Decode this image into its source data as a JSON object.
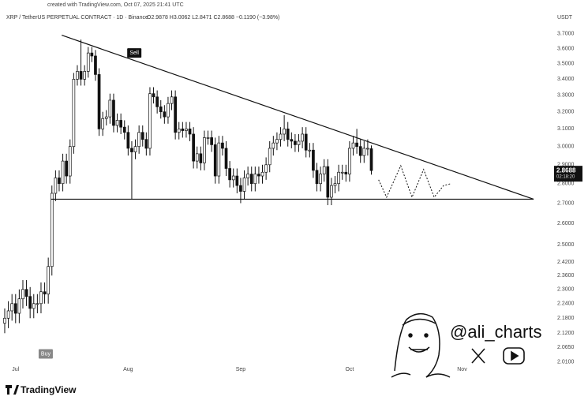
{
  "header": "created with TradingView.com, Oct 07, 2025 21:41 UTC",
  "chart_data": {
    "type": "candlestick",
    "title": "XRP / TetherUS PERPETUAL CONTRACT · 1D · Binance",
    "ohlc_text": "O2.9878 H3.0062 L2.8471 C2.8688 −0.1190 (−3.98%)",
    "currency": "USDT",
    "countdown": "02:18:20",
    "open": [
      2.16,
      2.18,
      2.21,
      2.24,
      2.2,
      2.26,
      2.3,
      2.27,
      2.22,
      2.24,
      2.24,
      2.29,
      2.28,
      2.4,
      2.75,
      2.83,
      2.8,
      2.92,
      2.84,
      3.0,
      3.4,
      3.45,
      3.4,
      3.45,
      3.57,
      3.55,
      3.43,
      3.1,
      3.16,
      3.17,
      3.27,
      3.12,
      3.15,
      3.11,
      3.08,
      2.99,
      2.97,
      3.0,
      3.08,
      3.04,
      2.99,
      3.31,
      3.29,
      3.23,
      3.2,
      3.17,
      3.25,
      3.29,
      3.08,
      3.1,
      3.09,
      3.1,
      3.07,
      2.92,
      2.96,
      2.91,
      3.05,
      3.05,
      3.01,
      2.84,
      3.02,
      2.99,
      2.88,
      2.82,
      2.84,
      2.79,
      2.76,
      2.83,
      2.85,
      2.8,
      2.85,
      2.84,
      2.86,
      2.9,
      2.99,
      3.02,
      3.04,
      3.07,
      3.1,
      3.04,
      3.03,
      3.01,
      3.03,
      3.07,
      2.98,
      2.98,
      2.87,
      2.8,
      2.85,
      2.89,
      2.73,
      2.79,
      2.8,
      2.86,
      2.86,
      2.85,
      2.99,
      3.02,
      3.0,
      2.95,
      2.99,
      2.9878
    ],
    "high": [
      2.22,
      2.25,
      2.28,
      2.28,
      2.3,
      2.34,
      2.34,
      2.31,
      2.28,
      2.28,
      2.33,
      2.33,
      2.44,
      2.79,
      2.87,
      2.87,
      2.96,
      2.96,
      3.04,
      3.44,
      3.49,
      3.66,
      3.49,
      3.61,
      3.61,
      3.59,
      3.47,
      3.2,
      3.21,
      3.31,
      3.31,
      3.19,
      3.19,
      3.15,
      3.12,
      3.03,
      3.04,
      3.12,
      3.12,
      3.08,
      3.35,
      3.35,
      3.33,
      3.27,
      3.24,
      3.29,
      3.33,
      3.33,
      3.14,
      3.14,
      3.14,
      3.14,
      3.11,
      3.0,
      3.0,
      3.09,
      3.09,
      3.09,
      3.05,
      3.06,
      3.06,
      3.03,
      2.92,
      2.88,
      2.88,
      2.83,
      2.87,
      2.89,
      2.89,
      2.89,
      2.89,
      2.9,
      2.94,
      3.03,
      3.06,
      3.08,
      3.11,
      3.18,
      3.14,
      3.08,
      3.07,
      3.07,
      3.11,
      3.11,
      3.02,
      3.02,
      2.91,
      2.89,
      2.93,
      2.93,
      2.83,
      2.84,
      2.9,
      2.9,
      2.9,
      3.03,
      3.06,
      3.1,
      3.04,
      3.03,
      3.04,
      3.0062
    ],
    "low": [
      2.12,
      2.14,
      2.17,
      2.16,
      2.16,
      2.22,
      2.23,
      2.18,
      2.18,
      2.2,
      2.2,
      2.24,
      2.24,
      2.36,
      2.71,
      2.76,
      2.76,
      2.8,
      2.8,
      2.96,
      3.36,
      3.36,
      3.36,
      3.41,
      3.51,
      3.39,
      3.06,
      3.06,
      3.12,
      3.13,
      3.08,
      3.08,
      3.07,
      3.04,
      2.95,
      2.72,
      2.93,
      2.96,
      3.0,
      2.95,
      2.95,
      3.25,
      3.19,
      3.16,
      3.13,
      3.13,
      3.21,
      3.04,
      3.04,
      3.05,
      3.05,
      3.03,
      2.88,
      2.88,
      2.87,
      2.87,
      3.01,
      2.97,
      2.8,
      2.8,
      2.95,
      2.84,
      2.78,
      2.78,
      2.75,
      2.7,
      2.72,
      2.79,
      2.76,
      2.76,
      2.8,
      2.8,
      2.82,
      2.86,
      2.95,
      2.98,
      3.0,
      3.03,
      3.0,
      2.99,
      2.97,
      2.97,
      2.99,
      2.94,
      2.94,
      2.83,
      2.76,
      2.76,
      2.81,
      2.69,
      2.69,
      2.75,
      2.76,
      2.82,
      2.81,
      2.81,
      2.95,
      2.96,
      2.91,
      2.91,
      2.95,
      2.8471
    ],
    "close": [
      2.18,
      2.21,
      2.24,
      2.2,
      2.26,
      2.3,
      2.27,
      2.22,
      2.24,
      2.24,
      2.29,
      2.28,
      2.4,
      2.75,
      2.83,
      2.8,
      2.92,
      2.84,
      3.0,
      3.4,
      3.45,
      3.4,
      3.45,
      3.57,
      3.55,
      3.43,
      3.1,
      3.16,
      3.17,
      3.27,
      3.12,
      3.15,
      3.11,
      3.08,
      2.99,
      2.97,
      3.0,
      3.08,
      3.04,
      2.99,
      3.31,
      3.29,
      3.23,
      3.2,
      3.17,
      3.25,
      3.29,
      3.08,
      3.1,
      3.09,
      3.1,
      3.07,
      2.92,
      2.96,
      2.91,
      3.05,
      3.05,
      3.01,
      2.84,
      3.02,
      2.99,
      2.88,
      2.82,
      2.84,
      2.79,
      2.76,
      2.83,
      2.85,
      2.8,
      2.85,
      2.84,
      2.86,
      2.9,
      2.99,
      3.02,
      3.04,
      3.07,
      3.1,
      3.04,
      3.03,
      3.01,
      3.03,
      3.07,
      2.98,
      2.98,
      2.87,
      2.8,
      2.85,
      2.89,
      2.73,
      2.79,
      2.8,
      2.86,
      2.86,
      2.85,
      2.99,
      3.02,
      3.0,
      2.95,
      2.99,
      2.99,
      2.8688
    ],
    "up_color": "#ffffff",
    "down_color": "#111111",
    "log_scale": true,
    "xlim": [
      -1.3,
      150.9
    ],
    "ylim": [
      2.0,
      3.77
    ],
    "yticks": [
      {
        "value": 3.7,
        "label": "3.7000"
      },
      {
        "value": 3.6,
        "label": "3.6000"
      },
      {
        "value": 3.5,
        "label": "3.5000"
      },
      {
        "value": 3.4,
        "label": "3.4000"
      },
      {
        "value": 3.3,
        "label": "3.3000"
      },
      {
        "value": 3.2,
        "label": "3.2000"
      },
      {
        "value": 3.1,
        "label": "3.1000"
      },
      {
        "value": 3.0,
        "label": "3.0000"
      },
      {
        "value": 2.9,
        "label": "2.9000"
      },
      {
        "value": 2.8,
        "label": "2.8000"
      },
      {
        "value": 2.7,
        "label": "2.7000"
      },
      {
        "value": 2.6,
        "label": "2.6000"
      },
      {
        "value": 2.5,
        "label": "2.5000"
      },
      {
        "value": 2.42,
        "label": "2.4200"
      },
      {
        "value": 2.36,
        "label": "2.3600"
      },
      {
        "value": 2.3,
        "label": "2.3000"
      },
      {
        "value": 2.24,
        "label": "2.2400"
      },
      {
        "value": 2.18,
        "label": "2.1800"
      },
      {
        "value": 2.12,
        "label": "2.1200"
      },
      {
        "value": 2.065,
        "label": "2.0650"
      },
      {
        "value": 2.01,
        "label": "2.0100"
      }
    ],
    "xticks": [
      {
        "value": 3,
        "label": "Jul"
      },
      {
        "value": 34,
        "label": "Aug"
      },
      {
        "value": 65,
        "label": "Sep"
      },
      {
        "value": 95,
        "label": "Oct"
      },
      {
        "value": 126,
        "label": "Nov"
      }
    ],
    "trendlines": [
      {
        "x": [
          15.7,
          145.7
        ],
        "y": [
          3.69,
          2.72
        ]
      },
      {
        "x": [
          12.8,
          145.7
        ],
        "y": [
          2.72,
          2.72
        ]
      }
    ],
    "projection": {
      "x": [
        103,
        105.2,
        109.1,
        112.2,
        115.4,
        118.3,
        120.9,
        123
      ],
      "y": [
        2.82,
        2.73,
        2.895,
        2.73,
        2.875,
        2.73,
        2.79,
        2.8
      ]
    },
    "annotations": [
      {
        "text": "Sell",
        "x": 35.7,
        "y": 3.57
      },
      {
        "text": "Buy",
        "x": 11.3,
        "y": 2.04
      }
    ]
  },
  "watermark": "@ali_charts",
  "brand": "TradingView"
}
